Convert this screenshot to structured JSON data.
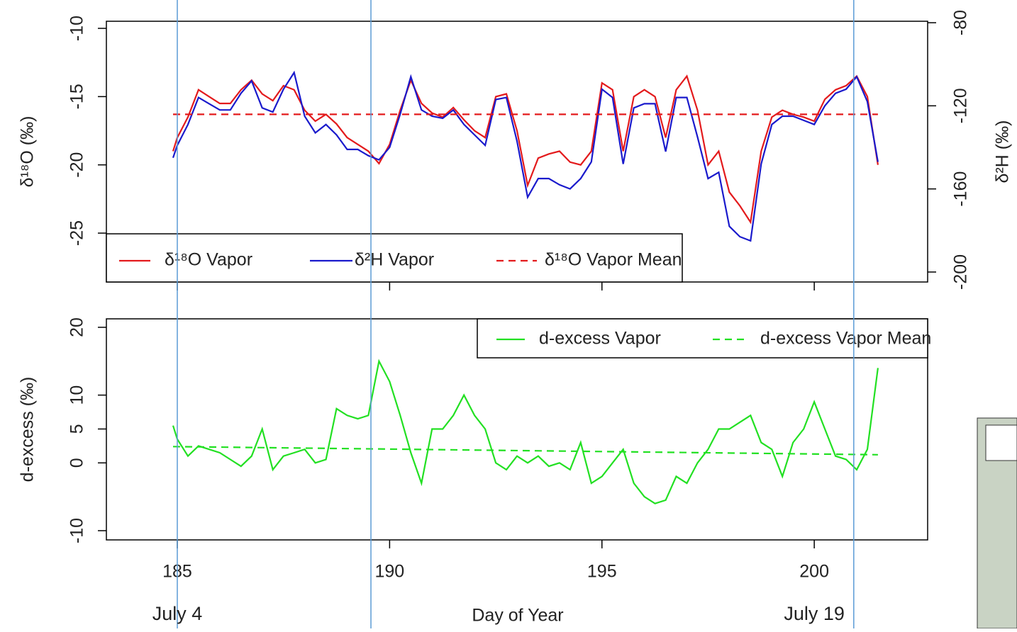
{
  "chart_data": [
    {
      "type": "line",
      "y_label": "δ¹⁸O (‰)",
      "y2_label": "δ²H (‰)",
      "xlim": [
        183.33,
        202.67
      ],
      "xticks": [
        185,
        190,
        195,
        200
      ],
      "ylim": [
        -28.58,
        -9.48
      ],
      "yticks": [
        -10,
        -15,
        -20,
        -25
      ],
      "y2lim": [
        -204.8,
        -79.3
      ],
      "y2ticks": [
        -80,
        -120,
        -160,
        -200
      ],
      "legend": "bottom-left",
      "series": [
        {
          "name": "δ¹⁸O Vapor",
          "color": "#e31a1c",
          "x": [
            184.9,
            185,
            185.25,
            185.5,
            185.75,
            186,
            186.25,
            186.5,
            186.75,
            187,
            187.25,
            187.5,
            187.75,
            188,
            188.25,
            188.5,
            188.75,
            189,
            189.25,
            189.5,
            189.75,
            190,
            190.25,
            190.5,
            190.75,
            191,
            191.25,
            191.5,
            191.75,
            192,
            192.25,
            192.5,
            192.75,
            193,
            193.25,
            193.5,
            193.75,
            194,
            194.25,
            194.5,
            194.75,
            195,
            195.25,
            195.5,
            195.75,
            196,
            196.25,
            196.5,
            196.75,
            197,
            197.25,
            197.5,
            197.75,
            198,
            198.25,
            198.5,
            198.75,
            199,
            199.25,
            199.5,
            199.75,
            200,
            200.25,
            200.5,
            200.75,
            201,
            201.25,
            201.5
          ],
          "values": [
            -19,
            -18,
            -16.5,
            -14.5,
            -15,
            -15.5,
            -15.5,
            -14.5,
            -13.8,
            -14.8,
            -15.3,
            -14.2,
            -14.5,
            -16,
            -16.8,
            -16.3,
            -17,
            -18,
            -18.5,
            -19,
            -19.9,
            -18.5,
            -16,
            -13.8,
            -15.5,
            -16.2,
            -16.5,
            -15.8,
            -16.7,
            -17.5,
            -18,
            -15,
            -14.8,
            -17.5,
            -21.5,
            -19.5,
            -19.2,
            -19,
            -19.8,
            -20,
            -19,
            -14,
            -14.5,
            -19,
            -15,
            -14.5,
            -15,
            -18,
            -14.5,
            -13.5,
            -16,
            -20,
            -19,
            -22,
            -23,
            -24.2,
            -19,
            -16.5,
            -16,
            -16.3,
            -16.5,
            -16.8,
            -15.2,
            -14.5,
            -14.2,
            -13.5,
            -15,
            -20
          ]
        },
        {
          "name": "δ²H Vapor",
          "color": "#1a1acc",
          "axis": "y2",
          "x": [
            184.9,
            185,
            185.25,
            185.5,
            185.75,
            186,
            186.25,
            186.5,
            186.75,
            187,
            187.25,
            187.5,
            187.75,
            188,
            188.25,
            188.5,
            188.75,
            189,
            189.25,
            189.5,
            189.75,
            190,
            190.25,
            190.5,
            190.75,
            191,
            191.25,
            191.5,
            191.75,
            192,
            192.25,
            192.5,
            192.75,
            193,
            193.25,
            193.5,
            193.75,
            194,
            194.25,
            194.5,
            194.75,
            195,
            195.25,
            195.5,
            195.75,
            196,
            196.25,
            196.5,
            196.75,
            197,
            197.25,
            197.5,
            197.75,
            198,
            198.25,
            198.5,
            198.75,
            199,
            199.25,
            199.5,
            199.75,
            200,
            200.25,
            200.5,
            200.75,
            201,
            201.25,
            201.5
          ],
          "values": [
            -145,
            -139,
            -129,
            -116,
            -119,
            -122,
            -122,
            -114,
            -108,
            -121,
            -123,
            -112,
            -104,
            -125,
            -133,
            -129,
            -134,
            -141,
            -141,
            -144,
            -146,
            -140,
            -124,
            -106,
            -122,
            -125,
            -126,
            -122,
            -129,
            -134,
            -139,
            -117,
            -116,
            -137,
            -164,
            -155,
            -155,
            -158,
            -160,
            -155,
            -147,
            -112,
            -116,
            -148,
            -121,
            -119,
            -119,
            -142,
            -116,
            -116,
            -135,
            -155,
            -152,
            -178,
            -183,
            -185,
            -148,
            -129,
            -125,
            -125,
            -127,
            -129,
            -120,
            -114,
            -112,
            -106,
            -118,
            -147
          ]
        },
        {
          "name": "δ¹⁸O Vapor Mean",
          "color": "#e31a1c",
          "dash": true,
          "x": [
            184.9,
            201.5
          ],
          "values": [
            -16.3,
            -16.3
          ]
        }
      ]
    },
    {
      "type": "line",
      "x_label": "Day of Year",
      "y_label": "d-excess (‰)",
      "xlim": [
        183.33,
        202.67
      ],
      "xticks": [
        185,
        190,
        195,
        200
      ],
      "ylim": [
        -11.36,
        21.25
      ],
      "yticks": [
        -10,
        0,
        5,
        10,
        20
      ],
      "legend": "top-right",
      "series": [
        {
          "name": "d-excess Vapor",
          "color": "#22e022",
          "x": [
            184.9,
            185,
            185.25,
            185.5,
            185.75,
            186,
            186.25,
            186.5,
            186.75,
            187,
            187.25,
            187.5,
            187.75,
            188,
            188.25,
            188.5,
            188.75,
            189,
            189.25,
            189.5,
            189.75,
            190,
            190.25,
            190.5,
            190.75,
            191,
            191.25,
            191.5,
            191.75,
            192,
            192.25,
            192.5,
            192.75,
            193,
            193.25,
            193.5,
            193.75,
            194,
            194.25,
            194.5,
            194.75,
            195,
            195.25,
            195.5,
            195.75,
            196,
            196.25,
            196.5,
            196.75,
            197,
            197.25,
            197.5,
            197.75,
            198,
            198.25,
            198.5,
            198.75,
            199,
            199.25,
            199.5,
            199.75,
            200,
            200.25,
            200.5,
            200.75,
            201,
            201.25,
            201.5
          ],
          "values": [
            5.5,
            3.5,
            1,
            2.5,
            2,
            1.5,
            0.5,
            -0.5,
            1,
            5,
            -1,
            1,
            1.5,
            2,
            0,
            0.5,
            8,
            7,
            6.5,
            7,
            15,
            12,
            7,
            1.5,
            -3,
            5,
            5,
            7,
            10,
            7,
            5,
            0,
            -1,
            1,
            0,
            1,
            -0.5,
            0,
            -1,
            3,
            -3,
            -2,
            0,
            2,
            -3,
            -5,
            -6,
            -5.5,
            -2,
            -3,
            0,
            2,
            5,
            5,
            6,
            7,
            3,
            2,
            -2,
            3,
            5,
            9,
            5,
            1,
            0.5,
            -1,
            2,
            14
          ]
        },
        {
          "name": "d-excess Vapor Mean",
          "color": "#22e022",
          "dash": true,
          "x": [
            184.9,
            201.5
          ],
          "values": [
            2.4,
            1.2
          ]
        }
      ],
      "vlines": [
        185.0,
        189.56,
        200.93
      ],
      "annotations": [
        {
          "x": 185,
          "text": "July 4"
        },
        {
          "x": 200,
          "text": "July 19"
        }
      ]
    }
  ]
}
